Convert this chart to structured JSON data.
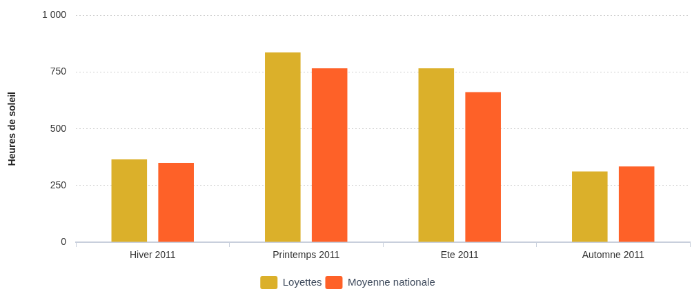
{
  "chart_data": {
    "type": "bar",
    "ylabel": "Heures de soleil",
    "categories": [
      "Hiver 2011",
      "Printemps 2011",
      "Ete 2011",
      "Automne 2011"
    ],
    "series": [
      {
        "name": "Loyettes",
        "color": "#dbb02a",
        "values": [
          365,
          837,
          767,
          312
        ]
      },
      {
        "name": "Moyenne nationale",
        "color": "#fe6128",
        "values": [
          350,
          767,
          662,
          334
        ]
      }
    ],
    "ylim": [
      0,
      1000
    ],
    "yticks": [
      0,
      250,
      500,
      750,
      {
        "value": 1000,
        "label": "1 000"
      }
    ],
    "grid": "y",
    "legend": "bottom"
  }
}
